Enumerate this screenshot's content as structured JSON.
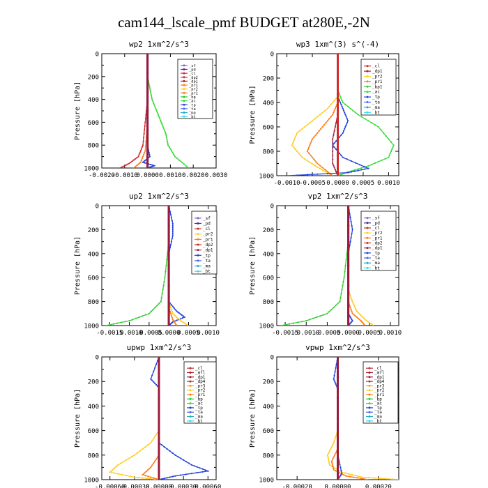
{
  "figure_title": "cam144_lscale_pmf  BUDGET at280E,-2N",
  "colors": {
    "sf": "#8a5fc4",
    "pd": "#4a2a9a",
    "cl": "#d22a2a",
    "mfl": "#9a1a3a",
    "dp1": "#a0203a",
    "dp2": "#d02a2a",
    "dp4": "#a83a20",
    "pr1": "#ff7a1a",
    "pr2": "#ffcc22",
    "pr3": "#ff9a1a",
    "bp": "#22cc22",
    "bp1": "#33cc33",
    "ac": "#33dd33",
    "tp": "#2244dd",
    "ta": "#4466ee",
    "ma": "#22aacc",
    "bt": "#33ddee"
  },
  "chart_data": [
    {
      "type": "line",
      "title": "wp2  1xm^2/s^3",
      "ylabel": "Pressure [hPa]",
      "xlim": [
        -0.002,
        0.003
      ],
      "ylim": [
        1000,
        0
      ],
      "xticks": [
        -0.002,
        -0.001,
        0.0,
        0.001,
        0.002,
        0.003
      ],
      "xtick_labels": [
        "-0.0020",
        "-0.0010",
        "0.0000",
        "0.0010",
        "0.0020",
        "0.0030"
      ],
      "yticks": [
        0,
        200,
        400,
        600,
        800,
        1000
      ],
      "ytick_labels": [
        "0",
        "200",
        "400",
        "600",
        "800",
        "1000"
      ],
      "legend": [
        "_sf",
        "_pd",
        "_cl",
        "_dp2",
        "_dp1",
        "_pr1",
        "_pr2",
        "_pr1",
        "_bp",
        "_ac",
        "_tp",
        "_ta",
        "_ma",
        "_bt"
      ],
      "series": [
        {
          "name": "_ac",
          "color": "#33dd33",
          "x": [
            0,
            0,
            0.0001,
            0.0002,
            0.0004,
            0.0006,
            0.0008,
            0.0009,
            0.0012,
            0.0018
          ],
          "y": [
            0,
            200,
            300,
            400,
            500,
            600,
            700,
            800,
            900,
            1000
          ]
        },
        {
          "name": "_dp2",
          "color": "#d02a2a",
          "x": [
            0,
            0,
            -0.0001,
            -0.0002,
            -0.0004,
            -0.0008,
            -0.0012
          ],
          "y": [
            0,
            400,
            600,
            800,
            900,
            960,
            1000
          ]
        },
        {
          "name": "_pr1",
          "color": "#ff7a1a",
          "x": [
            0,
            0,
            -0.0001,
            -0.0003,
            -0.0006
          ],
          "y": [
            0,
            600,
            850,
            950,
            1000
          ]
        },
        {
          "name": "_tp",
          "color": "#2244dd",
          "x": [
            0,
            0,
            0.0001,
            -0.0002,
            0.0003,
            0
          ],
          "y": [
            0,
            800,
            900,
            950,
            980,
            1000
          ]
        },
        {
          "name": "_pd",
          "color": "#4a2a9a",
          "x": [
            0,
            0
          ],
          "y": [
            0,
            1000
          ]
        },
        {
          "name": "_bt",
          "color": "#9a1a3a",
          "x": [
            0,
            0
          ],
          "y": [
            0,
            1000
          ]
        }
      ]
    },
    {
      "type": "line",
      "title": "wp3  1xm^(3) s^(-4)",
      "ylabel": "Pressure [hPa]",
      "xlim": [
        -0.0012,
        0.0012
      ],
      "ylim": [
        1000,
        0
      ],
      "xticks": [
        -0.001,
        -0.0005,
        0.0,
        0.0005,
        0.001
      ],
      "xtick_labels": [
        "-0.0010",
        "-0.0005",
        "0.0000",
        "0.0005",
        "0.0010"
      ],
      "yticks": [
        0,
        200,
        400,
        600,
        800,
        1000
      ],
      "ytick_labels": [
        "0",
        "200",
        "400",
        "600",
        "800",
        "1000"
      ],
      "legend": [
        "_cl",
        "_dp1",
        "_pr2",
        "_pr1",
        "_bp1",
        "_ac",
        "_tp",
        "_ta",
        "_ma",
        "_bt"
      ],
      "series": [
        {
          "name": "_ac",
          "color": "#33dd33",
          "x": [
            0,
            0,
            0.0001,
            0.0004,
            0.0008,
            0.0011,
            0.001,
            0.0006,
            0.0002,
            0
          ],
          "y": [
            0,
            300,
            400,
            500,
            600,
            750,
            850,
            920,
            970,
            1000
          ]
        },
        {
          "name": "_pr2",
          "color": "#ffcc22",
          "x": [
            0,
            0,
            -0.0002,
            -0.0005,
            -0.0008,
            -0.0009,
            -0.0007,
            -0.0004,
            -0.0001
          ],
          "y": [
            0,
            350,
            450,
            550,
            650,
            750,
            850,
            930,
            1000
          ]
        },
        {
          "name": "_pr1",
          "color": "#ff7a1a",
          "x": [
            0,
            0,
            -0.0001,
            -0.0003,
            -0.0005,
            -0.0006,
            -0.0004,
            -0.0001
          ],
          "y": [
            0,
            400,
            500,
            600,
            700,
            800,
            900,
            1000
          ]
        },
        {
          "name": "_dp1",
          "color": "#a0203a",
          "x": [
            0,
            0,
            -0.0001,
            -0.0001,
            0
          ],
          "y": [
            0,
            500,
            700,
            900,
            1000
          ]
        },
        {
          "name": "_tp",
          "color": "#2244dd",
          "x": [
            0,
            0,
            0.0001,
            0.0002,
            0.0001,
            -0.0001,
            0.0001,
            0.0006,
            0.0002,
            -0.001
          ],
          "y": [
            0,
            350,
            450,
            550,
            650,
            750,
            850,
            940,
            975,
            1000
          ]
        },
        {
          "name": "_cl",
          "color": "#d22a2a",
          "x": [
            0,
            0
          ],
          "y": [
            0,
            1000
          ]
        }
      ]
    },
    {
      "type": "line",
      "title": "up2  1xm^2/s^3",
      "ylabel": "Pressure [hPa]",
      "xlim": [
        -0.0017,
        0.0012
      ],
      "ylim": [
        1000,
        0
      ],
      "xticks": [
        -0.0015,
        -0.001,
        -0.0005,
        0.0,
        0.0005,
        0.001
      ],
      "xtick_labels": [
        "-0.0015",
        "-0.0010",
        "-0.0005",
        "0.0000",
        "0.0005",
        "0.0010"
      ],
      "yticks": [
        0,
        200,
        400,
        600,
        800,
        1000
      ],
      "ytick_labels": [
        "0",
        "200",
        "400",
        "600",
        "800",
        "1000"
      ],
      "legend": [
        "_sf",
        "_pd",
        "_cl",
        "_pr2",
        "_pr1",
        "_dp2",
        "_dp1",
        "_tp",
        "_ta",
        "_ma",
        "_bt"
      ],
      "series": [
        {
          "name": "_dp1",
          "color": "#33cc33",
          "x": [
            0,
            0,
            -0.0001,
            -0.0002,
            -0.0005,
            -0.001,
            -0.0016
          ],
          "y": [
            0,
            300,
            600,
            800,
            900,
            960,
            1000
          ]
        },
        {
          "name": "_tp",
          "color": "#2244dd",
          "x": [
            0,
            0.0001,
            0.0001,
            0,
            0,
            0.0002,
            0.0004,
            0.0001,
            0
          ],
          "y": [
            0,
            150,
            250,
            400,
            800,
            880,
            930,
            970,
            1000
          ]
        },
        {
          "name": "_pr2",
          "color": "#ffcc22",
          "x": [
            0,
            0,
            0.0001,
            0.0003,
            0.0005
          ],
          "y": [
            0,
            800,
            900,
            960,
            1000
          ]
        },
        {
          "name": "_pr1",
          "color": "#ff7a1a",
          "x": [
            0,
            0,
            0.0001,
            0.0002
          ],
          "y": [
            0,
            850,
            950,
            1000
          ]
        },
        {
          "name": "_cl",
          "color": "#d22a2a",
          "x": [
            0,
            0
          ],
          "y": [
            0,
            1000
          ]
        },
        {
          "name": "_bt",
          "color": "#9a1a3a",
          "x": [
            0,
            0
          ],
          "y": [
            0,
            1000
          ]
        }
      ]
    },
    {
      "type": "line",
      "title": "vp2  1xm^2/s^3",
      "ylabel": "Pressure [hPa]",
      "xlim": [
        -0.0017,
        0.0012
      ],
      "ylim": [
        1000,
        0
      ],
      "xticks": [
        -0.0015,
        -0.001,
        -0.0005,
        0.0,
        0.0005,
        0.001
      ],
      "xtick_labels": [
        "-0.0015",
        "-0.0010",
        "-0.0005",
        "0.0000",
        "0.0005",
        "0.0010"
      ],
      "yticks": [
        0,
        200,
        400,
        600,
        800,
        1000
      ],
      "ytick_labels": [
        "0",
        "200",
        "400",
        "600",
        "800",
        "1000"
      ],
      "legend": [
        "_sf",
        "_pd",
        "_cl",
        "_pr2",
        "_pr1",
        "_dp2",
        "_dp1",
        "_tp",
        "_ta",
        "_ma",
        "_bt"
      ],
      "series": [
        {
          "name": "_dp1",
          "color": "#33cc33",
          "x": [
            0,
            0,
            -0.0001,
            -0.0002,
            -0.0005,
            -0.001,
            -0.0016
          ],
          "y": [
            0,
            300,
            600,
            800,
            900,
            960,
            1000
          ]
        },
        {
          "name": "_pr2",
          "color": "#ffcc22",
          "x": [
            0,
            0,
            0.0001,
            0.0002,
            0.0004,
            0.0006
          ],
          "y": [
            0,
            700,
            800,
            880,
            950,
            1000
          ]
        },
        {
          "name": "_pr1",
          "color": "#ff7a1a",
          "x": [
            0,
            0,
            0.0001,
            0.0003,
            0.0004
          ],
          "y": [
            0,
            800,
            900,
            960,
            1000
          ]
        },
        {
          "name": "_tp",
          "color": "#2244dd",
          "x": [
            0,
            0.0001,
            0,
            0,
            0.0001,
            0
          ],
          "y": [
            0,
            200,
            400,
            900,
            960,
            1000
          ]
        },
        {
          "name": "_cl",
          "color": "#d22a2a",
          "x": [
            0,
            0
          ],
          "y": [
            0,
            1000
          ]
        },
        {
          "name": "_bt",
          "color": "#9a1a3a",
          "x": [
            0,
            0
          ],
          "y": [
            0,
            1000
          ]
        }
      ]
    },
    {
      "type": "line",
      "title": "upwp  1xm^2/s^3",
      "ylabel": "Pressure [hPa]",
      "xlim": [
        -0.0007,
        0.0007
      ],
      "ylim": [
        1000,
        0
      ],
      "xticks": [
        -0.0006,
        -0.0003,
        0.0,
        0.0003,
        0.0006
      ],
      "xtick_labels": [
        "-0.00060",
        "-0.00030",
        "0.00000",
        "0.00030",
        "0.00060"
      ],
      "yticks": [
        0,
        200,
        400,
        600,
        800,
        1000
      ],
      "ytick_labels": [
        "0",
        "200",
        "400",
        "600",
        "800",
        "1000"
      ],
      "legend": [
        "_cl",
        "_mfl",
        "_dp1",
        "_dp4",
        "_pr3",
        "_pr2",
        "_pr1",
        "_bp",
        "_ac",
        "_tp",
        "_ta",
        "_ma",
        "_bt"
      ],
      "series": [
        {
          "name": "_pr2",
          "color": "#ffcc22",
          "x": [
            0,
            0,
            -0.0001,
            -0.0003,
            -0.0005,
            -0.0006,
            -0.0003,
            0
          ],
          "y": [
            0,
            600,
            700,
            800,
            880,
            940,
            980,
            1000
          ]
        },
        {
          "name": "_tp",
          "color": "#2244dd",
          "x": [
            0,
            -0.0001,
            0,
            0,
            0.0002,
            0.0004,
            0.0006,
            0.0002,
            0
          ],
          "y": [
            0,
            180,
            250,
            700,
            800,
            880,
            930,
            970,
            1000
          ]
        },
        {
          "name": "_pr1",
          "color": "#ff7a1a",
          "x": [
            0,
            0,
            -0.0001,
            -0.0002,
            0
          ],
          "y": [
            0,
            800,
            900,
            960,
            1000
          ]
        },
        {
          "name": "_cl",
          "color": "#d22a2a",
          "x": [
            0,
            0
          ],
          "y": [
            0,
            1000
          ]
        },
        {
          "name": "_mfl",
          "color": "#9a1a3a",
          "x": [
            0,
            0
          ],
          "y": [
            0,
            1000
          ]
        }
      ]
    },
    {
      "type": "line",
      "title": "vpwp  1xm^2/s^3",
      "ylabel": "Pressure [hPa]",
      "xlim": [
        -0.0003,
        0.0003
      ],
      "ylim": [
        1000,
        0
      ],
      "xticks": [
        -0.0002,
        0.0,
        0.0002
      ],
      "xtick_labels": [
        "-0.00020",
        "0.00000",
        "0.00020"
      ],
      "yticks": [
        0,
        200,
        400,
        600,
        800,
        1000
      ],
      "ytick_labels": [
        "0",
        "200",
        "400",
        "600",
        "800",
        "1000"
      ],
      "legend": [
        "_cl",
        "_mfl",
        "_dp1",
        "_dp4",
        "_pr3",
        "_pr2",
        "_pr1",
        "_bp",
        "_ac",
        "_tp",
        "_ta",
        "_ma",
        "_bt"
      ],
      "series": [
        {
          "name": "_pr2",
          "color": "#ffcc22",
          "x": [
            0,
            0,
            -2e-05,
            -5e-05,
            -4e-05,
            2e-05,
            0.00012,
            0.0003
          ],
          "y": [
            0,
            600,
            700,
            800,
            880,
            940,
            980,
            1000
          ]
        },
        {
          "name": "_pr1",
          "color": "#ff7a1a",
          "x": [
            0,
            0,
            -3e-05,
            -2e-05,
            4e-05,
            0.00015
          ],
          "y": [
            0,
            750,
            850,
            920,
            970,
            1000
          ]
        },
        {
          "name": "_tp",
          "color": "#2244dd",
          "x": [
            0,
            -2e-05,
            0,
            0,
            2e-05,
            0
          ],
          "y": [
            0,
            180,
            260,
            800,
            950,
            1000
          ]
        },
        {
          "name": "_cl",
          "color": "#d22a2a",
          "x": [
            0,
            0
          ],
          "y": [
            0,
            1000
          ]
        },
        {
          "name": "_mfl",
          "color": "#9a1a3a",
          "x": [
            0,
            0
          ],
          "y": [
            0,
            1000
          ]
        }
      ]
    }
  ]
}
